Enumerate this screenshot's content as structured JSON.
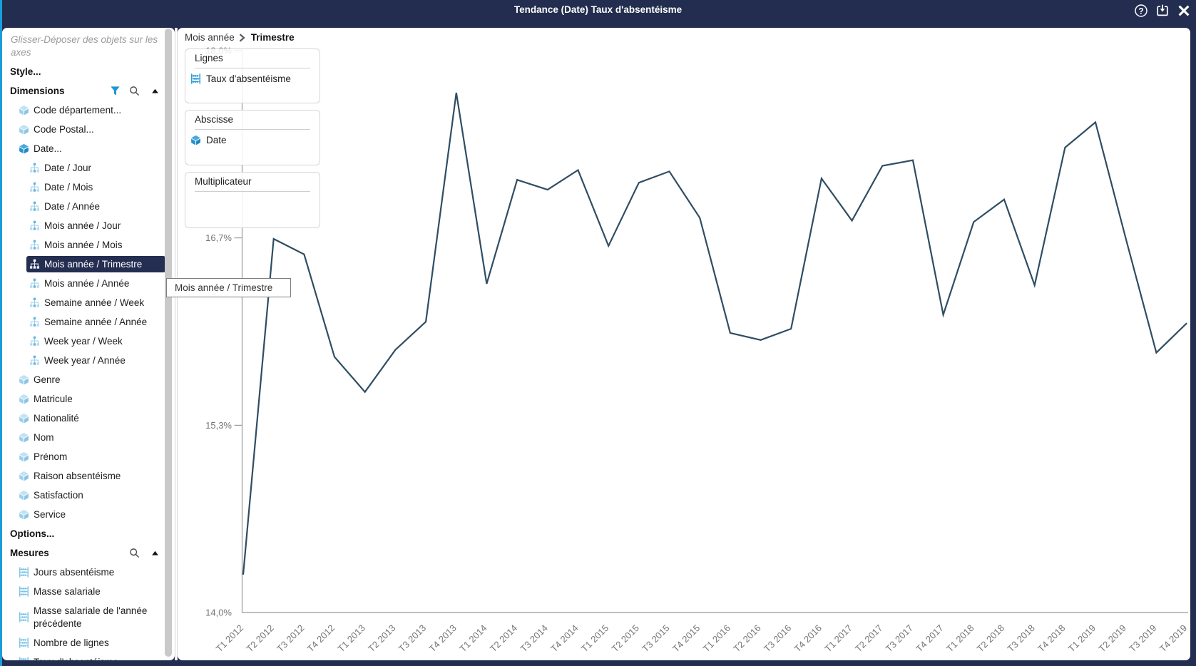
{
  "window": {
    "title": "Tendance (Date) Taux d'absentéisme",
    "actions": [
      {
        "name": "help",
        "icon": "help-icon"
      },
      {
        "name": "save",
        "icon": "save-icon"
      },
      {
        "name": "close",
        "icon": "close-icon"
      }
    ]
  },
  "sidebar": {
    "hint": "Glisser-Déposer des objets sur les axes",
    "style_label": "Style...",
    "options_label": "Options...",
    "dimensions": {
      "label": "Dimensions",
      "header_icons": [
        "filter-icon",
        "search-icon",
        "collapse-icon"
      ],
      "items": [
        {
          "label": "Code département...",
          "icon": "cube-light",
          "level": 1
        },
        {
          "label": "Code Postal...",
          "icon": "cube-light",
          "level": 1
        },
        {
          "label": "Date...",
          "icon": "cube-bright",
          "level": 1
        },
        {
          "label": "Date / Jour",
          "icon": "hierarchy",
          "level": 2
        },
        {
          "label": "Date / Mois",
          "icon": "hierarchy",
          "level": 2
        },
        {
          "label": "Date / Année",
          "icon": "hierarchy",
          "level": 2
        },
        {
          "label": "Mois année / Jour",
          "icon": "hierarchy",
          "level": 2
        },
        {
          "label": "Mois année / Mois",
          "icon": "hierarchy",
          "level": 2
        },
        {
          "label": "Mois année / Trimestre",
          "icon": "hierarchy",
          "level": 2,
          "selected": true
        },
        {
          "label": "Mois année / Année",
          "icon": "hierarchy",
          "level": 2
        },
        {
          "label": "Semaine année / Week",
          "icon": "hierarchy",
          "level": 2
        },
        {
          "label": "Semaine année / Année",
          "icon": "hierarchy",
          "level": 2
        },
        {
          "label": "Week year / Week",
          "icon": "hierarchy",
          "level": 2
        },
        {
          "label": "Week year / Année",
          "icon": "hierarchy",
          "level": 2
        },
        {
          "label": "Genre",
          "icon": "cube-light",
          "level": 1
        },
        {
          "label": "Matricule",
          "icon": "cube-light",
          "level": 1
        },
        {
          "label": "Nationalité",
          "icon": "cube-light",
          "level": 1
        },
        {
          "label": "Nom",
          "icon": "cube-light",
          "level": 1
        },
        {
          "label": "Prénom",
          "icon": "cube-light",
          "level": 1
        },
        {
          "label": "Raison absentéisme",
          "icon": "cube-light",
          "level": 1
        },
        {
          "label": "Satisfaction",
          "icon": "cube-light",
          "level": 1
        },
        {
          "label": "Service",
          "icon": "cube-light",
          "level": 1
        }
      ]
    },
    "mesures": {
      "label": "Mesures",
      "header_icons": [
        "search-icon",
        "collapse-icon"
      ],
      "items": [
        {
          "label": "Jours absentéisme",
          "icon": "measure-light"
        },
        {
          "label": "Masse salariale",
          "icon": "measure-light"
        },
        {
          "label": "Masse salariale de l'année précédente",
          "icon": "measure-light",
          "wrap": true
        },
        {
          "label": "Nombre de lignes",
          "icon": "measure-light"
        },
        {
          "label": "Taux d'absentéisme",
          "icon": "measure-light"
        }
      ]
    }
  },
  "breadcrumb": {
    "parent": "Mois année",
    "current": "Trimestre"
  },
  "drop_zones": {
    "lignes": {
      "title": "Lignes",
      "items": [
        {
          "label": "Taux d'absentéisme",
          "icon": "measure-bright"
        }
      ]
    },
    "abscisse": {
      "title": "Abscisse",
      "items": [
        {
          "label": "Date",
          "icon": "cube-bright"
        }
      ]
    },
    "multiplicateur": {
      "title": "Multiplicateur",
      "items": []
    }
  },
  "tooltip": {
    "text": "Mois année / Trimestre"
  },
  "chart_data": {
    "type": "line",
    "title": "Tendance (Date) Taux d'absentéisme",
    "xlabel": "",
    "ylabel": "",
    "legend": "none",
    "grid": false,
    "ylim": [
      14.0,
      18.0
    ],
    "y_tick_labels": [
      "14,0%",
      "15,3%",
      "16,7%",
      "18,0%"
    ],
    "y_tick_values": [
      14.0,
      15.333,
      16.667,
      18.0
    ],
    "categories": [
      "T1 2012",
      "T2 2012",
      "T3 2012",
      "T4 2012",
      "T1 2013",
      "T2 2013",
      "T3 2013",
      "T4 2013",
      "T1 2014",
      "T2 2014",
      "T3 2014",
      "T4 2014",
      "T1 2015",
      "T2 2015",
      "T3 2015",
      "T4 2015",
      "T1 2016",
      "T2 2016",
      "T3 2016",
      "T4 2016",
      "T1 2017",
      "T2 2017",
      "T3 2017",
      "T4 2017",
      "T1 2018",
      "T2 2018",
      "T3 2018",
      "T4 2018",
      "T1 2019",
      "T2 2019",
      "T3 2019",
      "T4 2019"
    ],
    "series": [
      {
        "name": "Taux d'absentéisme",
        "values": [
          14.27,
          16.66,
          16.55,
          15.82,
          15.57,
          15.87,
          16.07,
          17.7,
          16.34,
          17.08,
          17.01,
          17.15,
          16.61,
          17.06,
          17.14,
          16.81,
          15.99,
          15.94,
          16.02,
          17.09,
          16.79,
          17.18,
          17.22,
          16.12,
          16.78,
          16.94,
          16.33,
          17.31,
          17.49,
          16.66,
          15.85,
          16.06
        ]
      }
    ],
    "line_color": "#2f4d63",
    "axis_color": "#9a9a9a",
    "tick_label_color": "#757575"
  },
  "colors": {
    "frame_navy": "#232d4f",
    "accent_blue": "#1b9dd9",
    "selected_row_bg": "#242e51",
    "icon_blue_bright": "#2196d3",
    "icon_blue_light": "#85c6e8"
  }
}
